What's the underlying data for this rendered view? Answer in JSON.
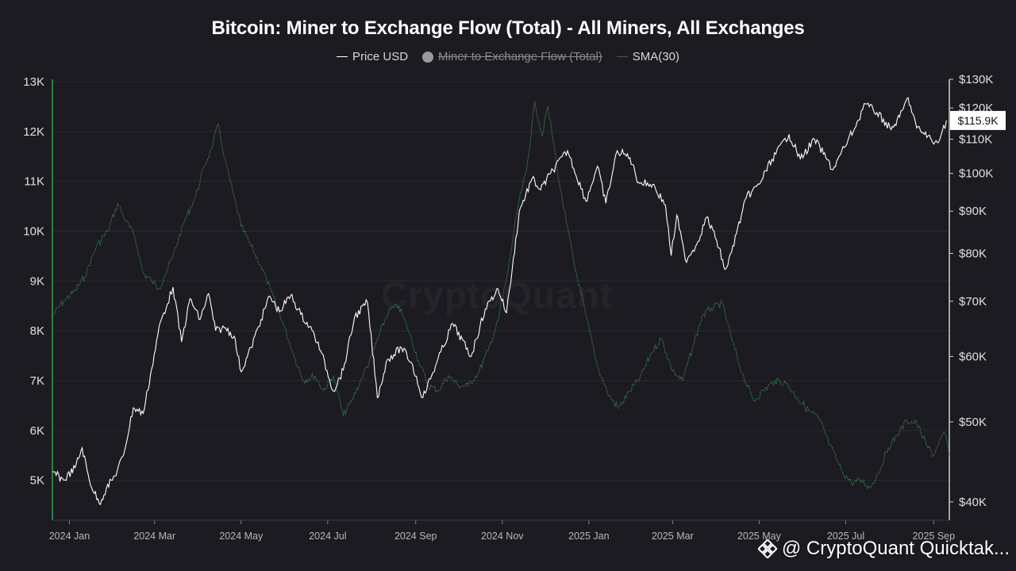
{
  "title": "Bitcoin: Miner to Exchange Flow (Total) - All Miners, All Exchanges",
  "legend": [
    {
      "label": "Price USD",
      "icon": "line-icon",
      "color": "#ffffff",
      "enabled": true
    },
    {
      "label": "Miner to Exchange Flow (Total)",
      "icon": "dot-icon",
      "color": "#9a9a9a",
      "enabled": false
    },
    {
      "label": "SMA(30)",
      "icon": "line-icon",
      "color": "#2f6b3e",
      "enabled": true
    }
  ],
  "watermark": "CryptoQuant",
  "attribution": "@ CryptoQuant Quicktak...",
  "colors": {
    "background": "#1c1b21",
    "price": "#ffffff",
    "sma": "#3f8a52",
    "axis_accent": "#2e7d45"
  },
  "chart_data": {
    "type": "line",
    "title": "Bitcoin: Miner to Exchange Flow (Total) - All Miners, All Exchanges",
    "x_ticks": [
      "2024 Jan",
      "2024 Mar",
      "2024 May",
      "2024 Jul",
      "2024 Sep",
      "2024 Nov",
      "2025 Jan",
      "2025 Mar",
      "2025 May",
      "2025 Jul",
      "2025 Sep"
    ],
    "x_range": [
      "2023-12-20",
      "2025-09-12"
    ],
    "y_left": {
      "ticks": [
        "5K",
        "6K",
        "7K",
        "8K",
        "9K",
        "10K",
        "11K",
        "12K",
        "13K"
      ],
      "range": [
        4200,
        13000
      ]
    },
    "y_right": {
      "ticks": [
        "$40K",
        "$50K",
        "$60K",
        "$70K",
        "$80K",
        "$90K",
        "$100K",
        "$110K",
        "$120K",
        "$130K"
      ],
      "range": [
        38000,
        130000
      ],
      "scale": "log"
    },
    "current_price_label": "$115.9K",
    "grid": "horizontal",
    "legend_position": "top-center",
    "series": [
      {
        "name": "Price USD",
        "axis": "right",
        "points": [
          [
            "2023-12-20",
            43500
          ],
          [
            "2023-12-28",
            42500
          ],
          [
            "2024-01-05",
            44000
          ],
          [
            "2024-01-10",
            46500
          ],
          [
            "2024-01-15",
            42500
          ],
          [
            "2024-01-22",
            39800
          ],
          [
            "2024-01-27",
            41500
          ],
          [
            "2024-02-02",
            43000
          ],
          [
            "2024-02-08",
            45500
          ],
          [
            "2024-02-15",
            52000
          ],
          [
            "2024-02-22",
            51200
          ],
          [
            "2024-02-28",
            58000
          ],
          [
            "2024-03-05",
            66000
          ],
          [
            "2024-03-10",
            69500
          ],
          [
            "2024-03-14",
            72800
          ],
          [
            "2024-03-20",
            62500
          ],
          [
            "2024-03-26",
            70500
          ],
          [
            "2024-04-02",
            66500
          ],
          [
            "2024-04-08",
            71500
          ],
          [
            "2024-04-13",
            64500
          ],
          [
            "2024-04-20",
            65000
          ],
          [
            "2024-04-26",
            63500
          ],
          [
            "2024-05-01",
            57500
          ],
          [
            "2024-05-08",
            61500
          ],
          [
            "2024-05-15",
            66500
          ],
          [
            "2024-05-21",
            71000
          ],
          [
            "2024-05-28",
            68000
          ],
          [
            "2024-06-05",
            71200
          ],
          [
            "2024-06-12",
            67500
          ],
          [
            "2024-06-20",
            64500
          ],
          [
            "2024-06-26",
            61000
          ],
          [
            "2024-07-05",
            54500
          ],
          [
            "2024-07-12",
            57800
          ],
          [
            "2024-07-20",
            67000
          ],
          [
            "2024-07-29",
            69800
          ],
          [
            "2024-08-05",
            53500
          ],
          [
            "2024-08-12",
            59500
          ],
          [
            "2024-08-22",
            61500
          ],
          [
            "2024-08-29",
            59000
          ],
          [
            "2024-09-06",
            53500
          ],
          [
            "2024-09-15",
            58500
          ],
          [
            "2024-09-27",
            65800
          ],
          [
            "2024-10-10",
            60000
          ],
          [
            "2024-10-20",
            68500
          ],
          [
            "2024-10-29",
            72500
          ],
          [
            "2024-11-04",
            67800
          ],
          [
            "2024-11-08",
            76500
          ],
          [
            "2024-11-13",
            90000
          ],
          [
            "2024-11-22",
            98500
          ],
          [
            "2024-11-28",
            95500
          ],
          [
            "2024-12-05",
            100000
          ],
          [
            "2024-12-17",
            106500
          ],
          [
            "2024-12-30",
            92500
          ],
          [
            "2025-01-07",
            102000
          ],
          [
            "2025-01-13",
            92000
          ],
          [
            "2025-01-21",
            106500
          ],
          [
            "2025-01-30",
            104500
          ],
          [
            "2025-02-05",
            97500
          ],
          [
            "2025-02-15",
            97000
          ],
          [
            "2025-02-24",
            91500
          ],
          [
            "2025-02-28",
            79500
          ],
          [
            "2025-03-04",
            89000
          ],
          [
            "2025-03-10",
            78500
          ],
          [
            "2025-03-18",
            82000
          ],
          [
            "2025-03-25",
            88500
          ],
          [
            "2025-04-01",
            83000
          ],
          [
            "2025-04-07",
            76500
          ],
          [
            "2025-04-09",
            77500
          ],
          [
            "2025-04-15",
            84500
          ],
          [
            "2025-04-22",
            93500
          ],
          [
            "2025-05-01",
            97000
          ],
          [
            "2025-05-10",
            104000
          ],
          [
            "2025-05-22",
            111500
          ],
          [
            "2025-05-30",
            104000
          ],
          [
            "2025-06-09",
            110000
          ],
          [
            "2025-06-17",
            104500
          ],
          [
            "2025-06-22",
            101000
          ],
          [
            "2025-06-30",
            107500
          ],
          [
            "2025-07-10",
            116000
          ],
          [
            "2025-07-14",
            121500
          ],
          [
            "2025-07-23",
            118500
          ],
          [
            "2025-08-02",
            113000
          ],
          [
            "2025-08-08",
            117000
          ],
          [
            "2025-08-14",
            123500
          ],
          [
            "2025-08-20",
            113500
          ],
          [
            "2025-08-28",
            111000
          ],
          [
            "2025-09-01",
            108500
          ],
          [
            "2025-09-06",
            111000
          ],
          [
            "2025-09-10",
            115900
          ]
        ]
      },
      {
        "name": "SMA(30)",
        "axis": "left",
        "points": [
          [
            "2023-12-20",
            8300
          ],
          [
            "2023-12-28",
            8600
          ],
          [
            "2024-01-05",
            8800
          ],
          [
            "2024-01-12",
            9100
          ],
          [
            "2024-01-20",
            9700
          ],
          [
            "2024-01-28",
            10000
          ],
          [
            "2024-02-04",
            10550
          ],
          [
            "2024-02-10",
            10200
          ],
          [
            "2024-02-16",
            9900
          ],
          [
            "2024-02-22",
            9150
          ],
          [
            "2024-02-28",
            9000
          ],
          [
            "2024-03-04",
            8850
          ],
          [
            "2024-03-08",
            9100
          ],
          [
            "2024-03-14",
            9500
          ],
          [
            "2024-03-22",
            10200
          ],
          [
            "2024-03-30",
            10700
          ],
          [
            "2024-04-05",
            11300
          ],
          [
            "2024-04-10",
            11650
          ],
          [
            "2024-04-15",
            12150
          ],
          [
            "2024-04-19",
            11500
          ],
          [
            "2024-04-25",
            10800
          ],
          [
            "2024-05-01",
            10100
          ],
          [
            "2024-05-08",
            9700
          ],
          [
            "2024-05-15",
            9300
          ],
          [
            "2024-05-22",
            8800
          ],
          [
            "2024-05-30",
            8200
          ],
          [
            "2024-06-06",
            7600
          ],
          [
            "2024-06-14",
            7000
          ],
          [
            "2024-06-22",
            7100
          ],
          [
            "2024-06-28",
            6800
          ],
          [
            "2024-07-05",
            7100
          ],
          [
            "2024-07-12",
            6300
          ],
          [
            "2024-07-18",
            6600
          ],
          [
            "2024-07-25",
            7050
          ],
          [
            "2024-08-01",
            7500
          ],
          [
            "2024-08-06",
            7900
          ],
          [
            "2024-08-13",
            8400
          ],
          [
            "2024-08-20",
            8500
          ],
          [
            "2024-08-27",
            8000
          ],
          [
            "2024-09-03",
            7400
          ],
          [
            "2024-09-10",
            6900
          ],
          [
            "2024-09-17",
            6800
          ],
          [
            "2024-09-24",
            7100
          ],
          [
            "2024-10-01",
            6900
          ],
          [
            "2024-10-08",
            6900
          ],
          [
            "2024-10-15",
            7150
          ],
          [
            "2024-10-22",
            7600
          ],
          [
            "2024-10-29",
            8200
          ],
          [
            "2024-11-05",
            9200
          ],
          [
            "2024-11-12",
            10500
          ],
          [
            "2024-11-18",
            11200
          ],
          [
            "2024-11-24",
            12600
          ],
          [
            "2024-11-29",
            11900
          ],
          [
            "2024-12-03",
            12500
          ],
          [
            "2024-12-07",
            11800
          ],
          [
            "2024-12-11",
            11000
          ],
          [
            "2024-12-16",
            10200
          ],
          [
            "2024-12-22",
            9300
          ],
          [
            "2024-12-30",
            8300
          ],
          [
            "2025-01-07",
            7300
          ],
          [
            "2025-01-15",
            6700
          ],
          [
            "2025-01-22",
            6450
          ],
          [
            "2025-01-30",
            6800
          ],
          [
            "2025-02-06",
            7050
          ],
          [
            "2025-02-14",
            7550
          ],
          [
            "2025-02-21",
            7850
          ],
          [
            "2025-03-01",
            7200
          ],
          [
            "2025-03-08",
            7000
          ],
          [
            "2025-03-15",
            7650
          ],
          [
            "2025-03-22",
            8300
          ],
          [
            "2025-03-28",
            8450
          ],
          [
            "2025-04-05",
            8550
          ],
          [
            "2025-04-12",
            7800
          ],
          [
            "2025-04-19",
            7150
          ],
          [
            "2025-04-27",
            6600
          ],
          [
            "2025-05-04",
            6800
          ],
          [
            "2025-05-12",
            7000
          ],
          [
            "2025-05-20",
            6950
          ],
          [
            "2025-05-28",
            6650
          ],
          [
            "2025-06-05",
            6400
          ],
          [
            "2025-06-12",
            6250
          ],
          [
            "2025-06-20",
            5700
          ],
          [
            "2025-06-28",
            5200
          ],
          [
            "2025-07-05",
            4950
          ],
          [
            "2025-07-12",
            5000
          ],
          [
            "2025-07-18",
            4850
          ],
          [
            "2025-07-24",
            5150
          ],
          [
            "2025-07-31",
            5650
          ],
          [
            "2025-08-06",
            5900
          ],
          [
            "2025-08-13",
            6200
          ],
          [
            "2025-08-20",
            6150
          ],
          [
            "2025-08-27",
            5700
          ],
          [
            "2025-09-01",
            5500
          ],
          [
            "2025-09-05",
            5800
          ],
          [
            "2025-09-09",
            5950
          ],
          [
            "2025-09-12",
            5500
          ]
        ]
      }
    ]
  }
}
